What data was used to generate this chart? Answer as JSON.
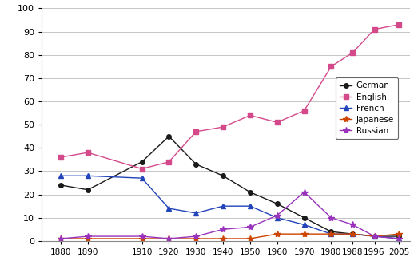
{
  "years": [
    1880,
    1890,
    1910,
    1920,
    1930,
    1940,
    1950,
    1960,
    1970,
    1980,
    1988,
    1996,
    2005
  ],
  "series": {
    "German": {
      "values": [
        24,
        22,
        34,
        45,
        33,
        28,
        21,
        16,
        10,
        4,
        3,
        2,
        2
      ],
      "color": "#1a1a1a",
      "marker": "o",
      "markersize": 4
    },
    "English": {
      "values": [
        36,
        38,
        31,
        34,
        47,
        49,
        54,
        51,
        56,
        75,
        81,
        91,
        93
      ],
      "color": "#d4498a",
      "marker": "s",
      "markersize": 4
    },
    "French": {
      "values": [
        28,
        28,
        27,
        14,
        12,
        15,
        15,
        10,
        7,
        3,
        3,
        2,
        1
      ],
      "color": "#2244bb",
      "marker": "^",
      "markersize": 4
    },
    "Japanese": {
      "values": [
        1,
        1,
        1,
        1,
        1,
        1,
        1,
        3,
        3,
        3,
        3,
        2,
        3
      ],
      "color": "#cc4400",
      "marker": "*",
      "markersize": 6
    },
    "Russian": {
      "values": [
        1,
        2,
        2,
        1,
        2,
        5,
        6,
        11,
        21,
        10,
        7,
        2,
        1
      ],
      "color": "#9933bb",
      "marker": "*",
      "markersize": 6
    }
  },
  "xlim_left": 1873,
  "xlim_right": 2009,
  "ylim": [
    0,
    100
  ],
  "yticks": [
    0,
    10,
    20,
    30,
    40,
    50,
    60,
    70,
    80,
    90,
    100
  ],
  "xtick_years": [
    1880,
    1890,
    1910,
    1920,
    1930,
    1940,
    1950,
    1960,
    1970,
    1980,
    1988,
    1996,
    2005
  ],
  "legend_order": [
    "German",
    "English",
    "French",
    "Japanese",
    "Russian"
  ],
  "background_color": "#ffffff",
  "grid_color": "#bbbbbb",
  "linewidth": 1.0
}
